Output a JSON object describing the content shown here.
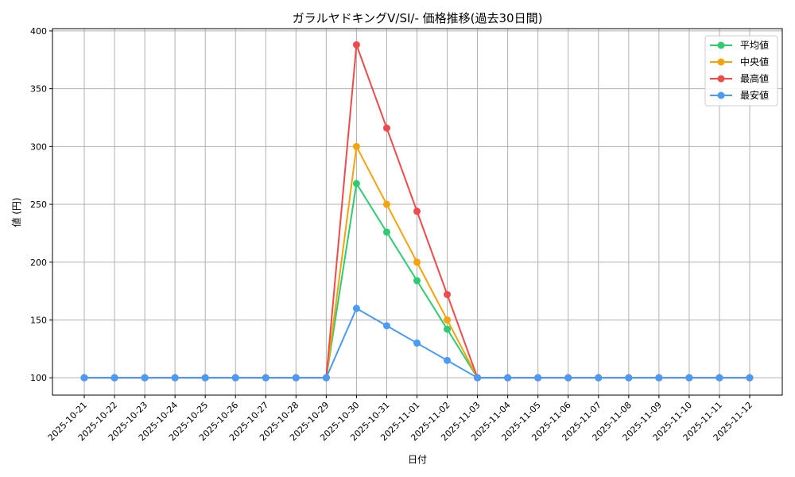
{
  "chart_data": {
    "type": "line",
    "title": "ガラルヤドキングV/SI/- 価格推移(過去30日間)",
    "xlabel": "日付",
    "ylabel": "値 (円)",
    "ylim": [
      85,
      402
    ],
    "yticks": [
      100,
      150,
      200,
      250,
      300,
      350,
      400
    ],
    "grid": true,
    "legend_position": "top-right",
    "categories": [
      "2025-10-21",
      "2025-10-22",
      "2025-10-23",
      "2025-10-24",
      "2025-10-25",
      "2025-10-26",
      "2025-10-27",
      "2025-10-28",
      "2025-10-29",
      "2025-10-30",
      "2025-10-31",
      "2025-11-01",
      "2025-11-02",
      "2025-11-03",
      "2025-11-04",
      "2025-11-05",
      "2025-11-06",
      "2025-11-07",
      "2025-11-08",
      "2025-11-09",
      "2025-11-10",
      "2025-11-11",
      "2025-11-12"
    ],
    "series": [
      {
        "name": "平均値",
        "color": "#2ecc71",
        "values": [
          100,
          100,
          100,
          100,
          100,
          100,
          100,
          100,
          100,
          268,
          226,
          184,
          142,
          100,
          100,
          100,
          100,
          100,
          100,
          100,
          100,
          100,
          100
        ]
      },
      {
        "name": "中央値",
        "color": "#f5a30a",
        "values": [
          100,
          100,
          100,
          100,
          100,
          100,
          100,
          100,
          100,
          300,
          250,
          200,
          150,
          100,
          100,
          100,
          100,
          100,
          100,
          100,
          100,
          100,
          100
        ]
      },
      {
        "name": "最高値",
        "color": "#ef4b4b",
        "values": [
          100,
          100,
          100,
          100,
          100,
          100,
          100,
          100,
          100,
          388,
          316,
          244,
          172,
          100,
          100,
          100,
          100,
          100,
          100,
          100,
          100,
          100,
          100
        ]
      },
      {
        "name": "最安値",
        "color": "#4a9bf5",
        "values": [
          100,
          100,
          100,
          100,
          100,
          100,
          100,
          100,
          100,
          160,
          145,
          130,
          115,
          100,
          100,
          100,
          100,
          100,
          100,
          100,
          100,
          100,
          100
        ]
      }
    ]
  }
}
